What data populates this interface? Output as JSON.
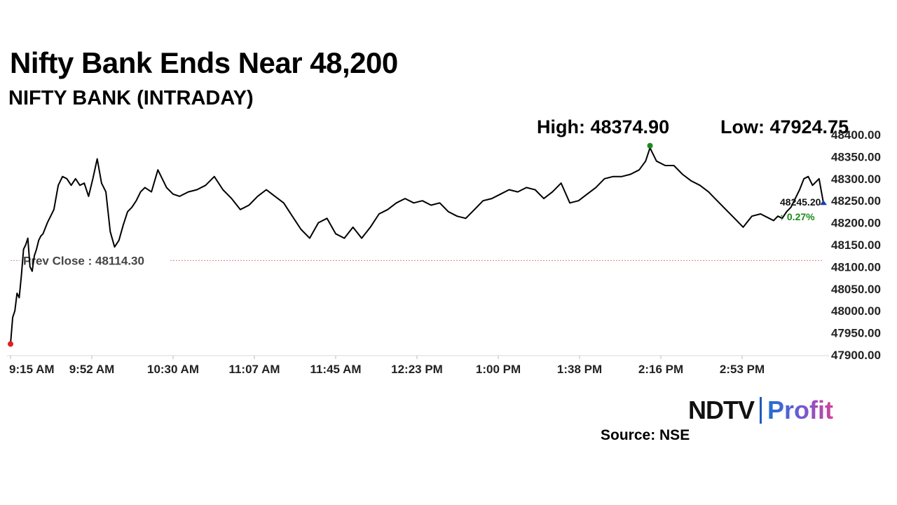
{
  "header": {
    "title": "Nifty Bank Ends Near 48,200",
    "subtitle": "NIFTY BANK (INTRADAY)"
  },
  "stats": {
    "high": "High: 48374.90",
    "low": "Low: 47924.75"
  },
  "branding": {
    "logo_ndtv": "NDTV",
    "logo_profit": "Profit",
    "source": "Source: NSE"
  },
  "chart_data": {
    "type": "line",
    "x_tick_labels": [
      "9:15 AM",
      "9:52 AM",
      "10:30 AM",
      "11:07 AM",
      "11:45 AM",
      "12:23 PM",
      "1:00 PM",
      "1:38 PM",
      "2:16 PM",
      "2:53 PM"
    ],
    "y_tick_labels": [
      "48400.00",
      "48350.00",
      "48300.00",
      "48250.00",
      "48200.00",
      "48150.00",
      "48100.00",
      "48050.00",
      "48000.00",
      "47950.00",
      "47900.00"
    ],
    "ylim": [
      47900,
      48400
    ],
    "xlim_minutes": [
      0,
      375
    ],
    "prev_close": {
      "label": "Prev Close : 48114.30",
      "value": 48114.3,
      "color": "#e08080"
    },
    "last": {
      "label": "48245.20",
      "value": 48245.2,
      "change": "↑ 0.27%",
      "change_color": "#1a8a1a"
    },
    "high_point": {
      "minute": 295,
      "value": 48374.9,
      "color": "#1a8a1a"
    },
    "low_point": {
      "minute": 0,
      "value": 47924.75,
      "color": "#e02020"
    },
    "last_marker_color": "#1a3ab8",
    "line_color": "#000000",
    "series": [
      {
        "x": [
          0,
          1,
          2,
          3,
          4,
          5,
          6,
          7,
          8,
          9,
          10,
          11,
          12,
          13,
          14,
          15,
          17,
          20,
          22,
          24,
          26,
          28,
          30,
          32,
          34,
          36,
          38,
          40,
          42,
          44,
          46,
          48,
          50,
          52,
          54,
          56,
          58,
          60,
          62,
          65,
          68,
          70,
          72,
          75,
          78,
          82,
          86,
          90,
          94,
          98,
          102,
          106,
          110,
          114,
          118,
          122,
          126,
          130,
          134,
          138,
          142,
          146,
          150,
          154,
          158,
          162,
          166,
          170,
          174,
          178,
          182,
          186,
          190,
          194,
          198,
          202,
          206,
          210,
          214,
          218,
          222,
          226,
          230,
          234,
          238,
          242,
          246,
          250,
          254,
          258,
          262,
          266,
          270,
          274,
          278,
          282,
          286,
          290,
          293,
          295,
          298,
          302,
          306,
          310,
          314,
          318,
          322,
          326,
          330,
          334,
          338,
          342,
          346,
          350,
          352,
          354,
          356,
          358,
          360,
          362,
          364,
          366,
          368,
          370,
          373,
          375
        ],
        "y": [
          47925,
          47985,
          48000,
          48040,
          48030,
          48080,
          48140,
          48150,
          48165,
          48100,
          48090,
          48125,
          48140,
          48160,
          48170,
          48175,
          48200,
          48230,
          48285,
          48305,
          48300,
          48285,
          48300,
          48285,
          48290,
          48260,
          48300,
          48345,
          48290,
          48270,
          48180,
          48145,
          48160,
          48195,
          48225,
          48235,
          48250,
          48270,
          48280,
          48270,
          48320,
          48300,
          48280,
          48265,
          48260,
          48270,
          48275,
          48285,
          48305,
          48275,
          48255,
          48230,
          48240,
          48260,
          48275,
          48260,
          48245,
          48215,
          48185,
          48165,
          48200,
          48210,
          48175,
          48165,
          48190,
          48165,
          48190,
          48220,
          48230,
          48245,
          48255,
          48245,
          48250,
          48240,
          48245,
          48225,
          48215,
          48210,
          48230,
          48250,
          48255,
          48265,
          48275,
          48270,
          48280,
          48275,
          48255,
          48270,
          48290,
          48245,
          48250,
          48265,
          48280,
          48300,
          48305,
          48305,
          48310,
          48320,
          48340,
          48370,
          48340,
          48330,
          48330,
          48310,
          48295,
          48285,
          48270,
          48250,
          48230,
          48210,
          48190,
          48215,
          48220,
          48210,
          48205,
          48215,
          48210,
          48225,
          48235,
          48255,
          48275,
          48300,
          48305,
          48285,
          48300,
          48245
        ]
      }
    ]
  }
}
